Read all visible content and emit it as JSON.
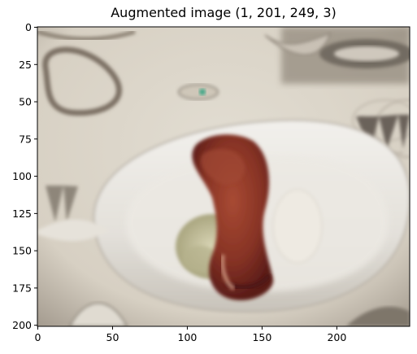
{
  "chart_data": {
    "type": "image",
    "title": "Augmented image (1, 201, 249, 3)",
    "image_shape": [
      1,
      201,
      249,
      3
    ],
    "content": "photo of a plated dish on a white bowl, wine glass and table patterns in background",
    "xlim": [
      0,
      249
    ],
    "ylim": [
      201,
      0
    ],
    "x_ticks": [
      0,
      50,
      100,
      150,
      200
    ],
    "y_ticks": [
      0,
      25,
      50,
      75,
      100,
      125,
      150,
      175,
      200
    ],
    "xlabel": "",
    "ylabel": ""
  },
  "colors": {
    "table": "#ddd7ca",
    "bowl": "#e9e7e1",
    "shadow": "#6f675c",
    "food_red": "#8a3526",
    "food_dark": "#5e1e19",
    "herb": "#c9c5a2",
    "sauce": "#ece8df"
  }
}
